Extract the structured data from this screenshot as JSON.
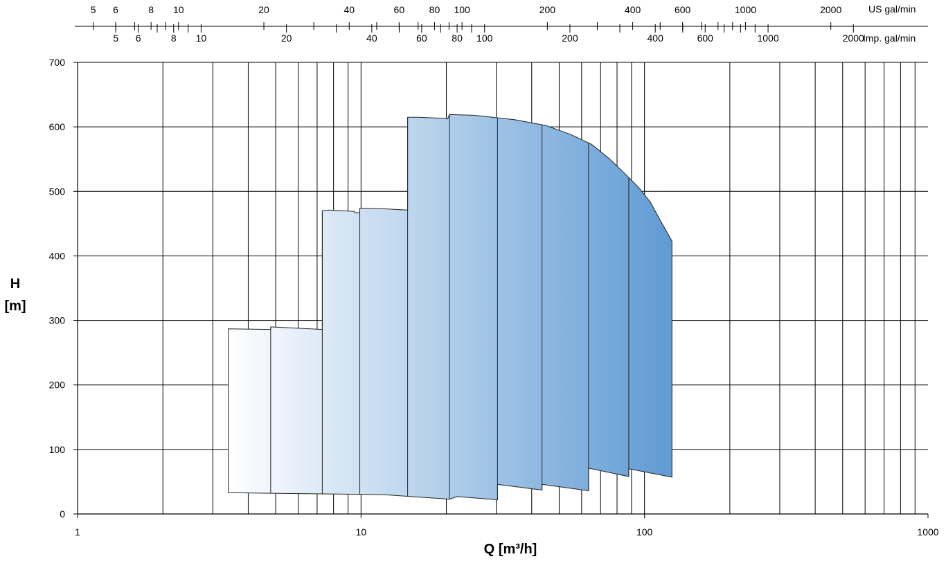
{
  "chart_data": {
    "type": "area",
    "title": "",
    "xlabel": "Q [m³/h]",
    "ylabel_line1": "H",
    "ylabel_line2": "[m]",
    "x_scale": "log",
    "xlim": [
      1,
      1000
    ],
    "ylim": [
      0,
      700
    ],
    "grid": true,
    "x_ticks": [
      1,
      10,
      100,
      1000
    ],
    "x_tick_labels": [
      "1",
      "10",
      "100",
      "1000"
    ],
    "x_gridlines": [
      2,
      3,
      4,
      5,
      6,
      7,
      8,
      9,
      10,
      20,
      30,
      40,
      50,
      60,
      70,
      80,
      90,
      100,
      200,
      300,
      400,
      500,
      600,
      700,
      800,
      900
    ],
    "y_ticks": [
      0,
      100,
      200,
      300,
      400,
      500,
      600,
      700
    ],
    "y_tick_labels": [
      "0",
      "100",
      "200",
      "300",
      "400",
      "500",
      "600",
      "700"
    ],
    "us_gal_axis": {
      "unit": "US gal/min",
      "labels": [
        "5",
        "6",
        "8",
        "10",
        "20",
        "40",
        "60",
        "80",
        "100",
        "200",
        "400",
        "600",
        "1000",
        "2000"
      ],
      "label_values": [
        5,
        6,
        8,
        10,
        20,
        40,
        60,
        80,
        100,
        200,
        400,
        600,
        1000,
        2000
      ],
      "tick_values": [
        5,
        6,
        7,
        8,
        9,
        10,
        20,
        30,
        40,
        50,
        60,
        70,
        80,
        90,
        100,
        200,
        300,
        400,
        500,
        600,
        700,
        800,
        900,
        1000,
        2000
      ],
      "m3h_per_unit": 0.2271
    },
    "imp_gal_axis": {
      "unit": "Imp. gal/min",
      "labels": [
        "5",
        "6",
        "8",
        "10",
        "20",
        "40",
        "60",
        "80",
        "100",
        "200",
        "400",
        "600",
        "1000",
        "2000"
      ],
      "label_values": [
        5,
        6,
        8,
        10,
        20,
        40,
        60,
        80,
        100,
        200,
        400,
        600,
        1000,
        2000
      ],
      "tick_values": [
        5,
        6,
        7,
        8,
        9,
        10,
        20,
        30,
        40,
        50,
        60,
        70,
        80,
        90,
        100,
        200,
        300,
        400,
        500,
        600,
        700,
        800,
        900,
        1000,
        2000
      ],
      "m3h_per_unit": 0.2728
    },
    "performance_range": {
      "top_edge": [
        [
          3.4,
          287
        ],
        [
          4.8,
          286
        ],
        [
          4.8,
          290
        ],
        [
          7.3,
          286
        ],
        [
          7.3,
          470
        ],
        [
          7.7,
          471
        ],
        [
          9.5,
          469
        ],
        [
          9.5,
          467
        ],
        [
          9.9,
          467
        ],
        [
          9.9,
          474
        ],
        [
          12,
          473
        ],
        [
          14.6,
          471
        ],
        [
          14.6,
          615
        ],
        [
          16,
          615
        ],
        [
          20,
          613
        ],
        [
          20.2,
          612
        ],
        [
          20.5,
          619
        ],
        [
          25,
          618
        ],
        [
          35,
          611
        ],
        [
          45,
          602
        ],
        [
          55,
          588
        ],
        [
          65,
          573
        ],
        [
          75,
          551
        ],
        [
          85,
          528
        ],
        [
          95,
          507
        ],
        [
          105,
          483
        ],
        [
          115,
          451
        ],
        [
          125,
          423
        ]
      ],
      "bottom_edge": [
        [
          3.4,
          33
        ],
        [
          12,
          30
        ],
        [
          20.5,
          23
        ],
        [
          21.8,
          27
        ],
        [
          30.3,
          22
        ],
        [
          30.3,
          46
        ],
        [
          43.5,
          37
        ],
        [
          43.5,
          46
        ],
        [
          63.5,
          36
        ],
        [
          63.5,
          71
        ],
        [
          88,
          58
        ],
        [
          88,
          70
        ],
        [
          125,
          57
        ]
      ],
      "divider_q": [
        4.8,
        7.3,
        9.9,
        14.6,
        20.5,
        30.3,
        43.5,
        63.5,
        88
      ],
      "fill_start_color": "#ffffff",
      "fill_end_color": "#5f9bd4"
    }
  }
}
